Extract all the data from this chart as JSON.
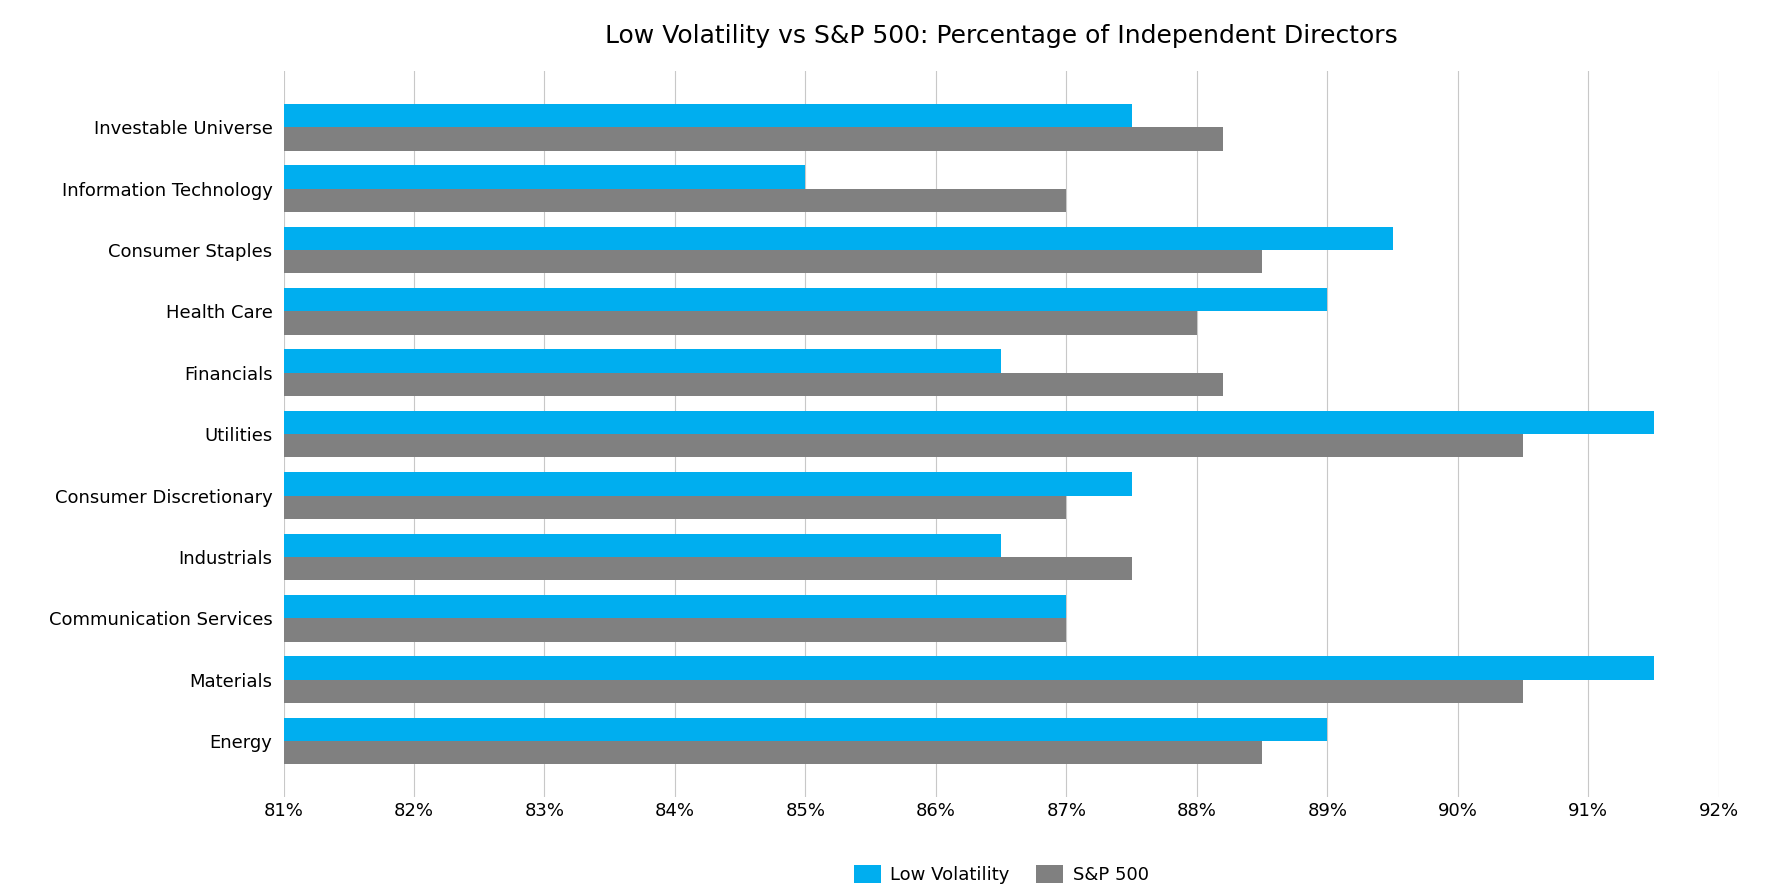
{
  "title": "Low Volatility vs S&P 500: Percentage of Independent Directors",
  "categories": [
    "Investable Universe",
    "Information Technology",
    "Consumer Staples",
    "Health Care",
    "Financials",
    "Utilities",
    "Consumer Discretionary",
    "Industrials",
    "Communication Services",
    "Materials",
    "Energy"
  ],
  "low_vol": [
    87.5,
    85.0,
    89.5,
    89.0,
    86.5,
    91.5,
    87.5,
    86.5,
    87.0,
    91.5,
    89.0
  ],
  "sp500": [
    88.2,
    87.0,
    88.5,
    88.0,
    88.2,
    90.5,
    87.0,
    87.5,
    87.0,
    90.5,
    88.5
  ],
  "low_vol_color": "#00AEEF",
  "sp500_color": "#808080",
  "background_color": "#FFFFFF",
  "xlim": [
    81.0,
    92.0
  ],
  "xticks": [
    81,
    82,
    83,
    84,
    85,
    86,
    87,
    88,
    89,
    90,
    91,
    92
  ],
  "bar_height": 0.38,
  "legend_labels": [
    "Low Volatility",
    "S&P 500"
  ],
  "title_fontsize": 18,
  "tick_fontsize": 13,
  "label_fontsize": 13,
  "legend_fontsize": 13
}
